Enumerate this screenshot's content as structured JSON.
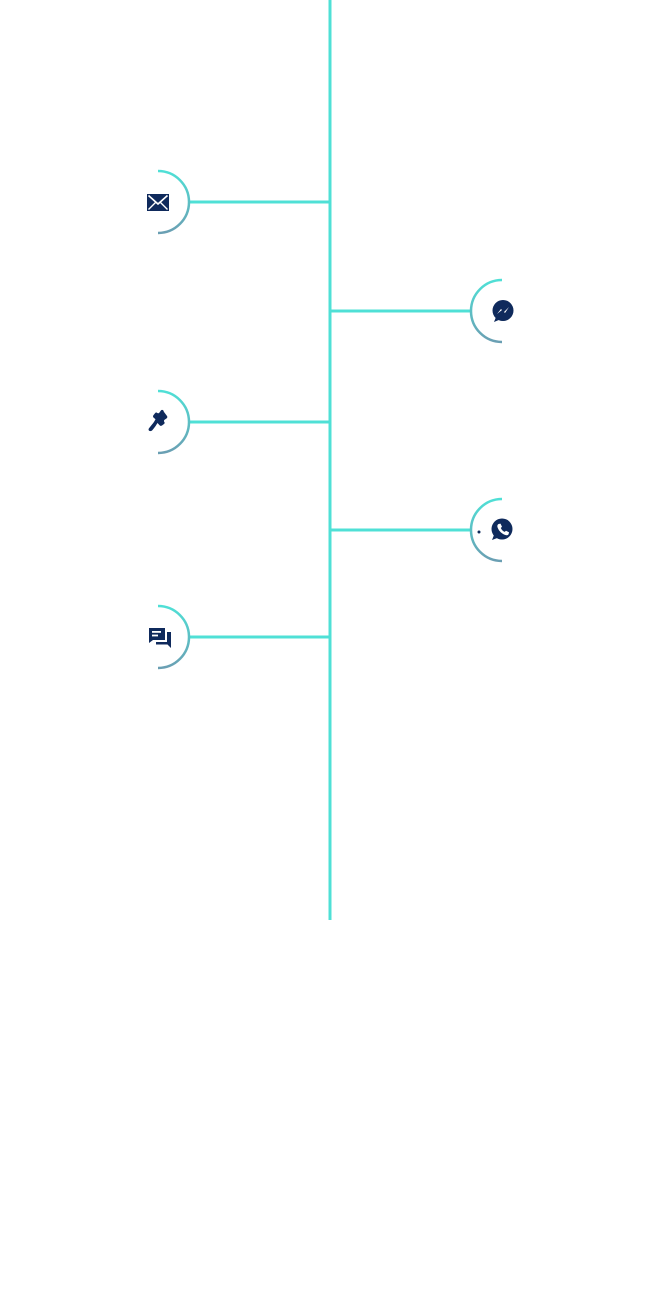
{
  "colors": {
    "line": "#4fe0d6",
    "arc_top": "#4fe0d6",
    "arc_bottom": "#6a9fb3",
    "icon": "#0f2a5c",
    "background": "#ffffff"
  },
  "channels": [
    {
      "name": "email",
      "icon": "envelope-icon",
      "side": "left"
    },
    {
      "name": "messenger",
      "icon": "messenger-icon",
      "side": "right"
    },
    {
      "name": "phone",
      "icon": "phone-icon",
      "side": "left"
    },
    {
      "name": "whatsapp",
      "icon": "whatsapp-icon",
      "side": "right"
    },
    {
      "name": "chat",
      "icon": "chat-icon",
      "side": "left"
    }
  ]
}
